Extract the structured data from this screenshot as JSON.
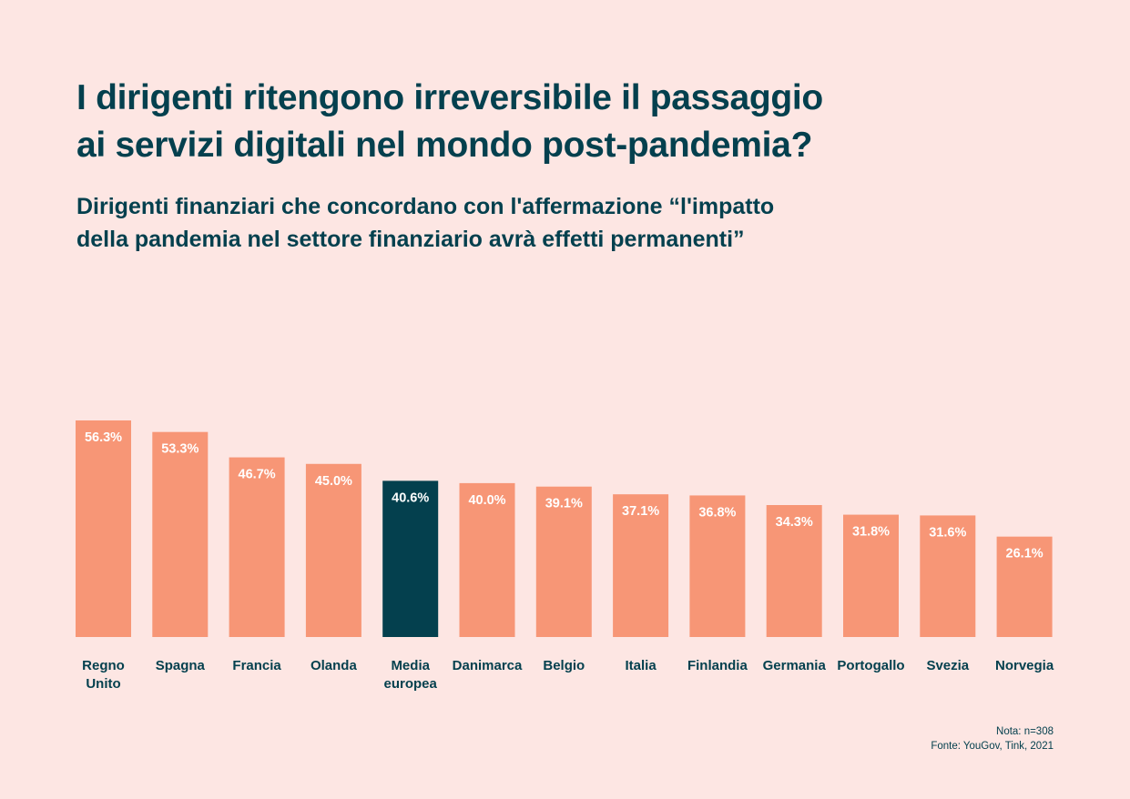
{
  "header": {
    "title_line1": "I dirigenti ritengono irreversibile il passaggio",
    "title_line2": "ai servizi digitali nel mondo post-pandemia?",
    "subtitle_line1": "Dirigenti finanziari che concordano con l'affermazione “l'impatto",
    "subtitle_line2": "della pandemia nel settore finanziario avrà effetti permanenti”"
  },
  "footer": {
    "note": "Nota: n=308",
    "source": "Fonte: YouGov, Tink, 2021"
  },
  "colors": {
    "background": "#fde6e3",
    "bar": "#f79676",
    "highlight_bar": "#04404e",
    "text": "#04404e",
    "bar_label": "#ffffff"
  },
  "chart_data": {
    "type": "bar",
    "categories": [
      "Regno Unito",
      "Spagna",
      "Francia",
      "Olanda",
      "Media europea",
      "Danimarca",
      "Belgio",
      "Italia",
      "Finlandia",
      "Germania",
      "Portogallo",
      "Svezia",
      "Norvegia"
    ],
    "category_label_lines": [
      [
        "Regno",
        "Unito"
      ],
      [
        "Spagna"
      ],
      [
        "Francia"
      ],
      [
        "Olanda"
      ],
      [
        "Media",
        "europea"
      ],
      [
        "Danimarca"
      ],
      [
        "Belgio"
      ],
      [
        "Italia"
      ],
      [
        "Finlandia"
      ],
      [
        "Germania"
      ],
      [
        "Portogallo"
      ],
      [
        "Svezia"
      ],
      [
        "Norvegia"
      ]
    ],
    "values": [
      56.3,
      53.3,
      46.7,
      45.0,
      40.6,
      40.0,
      39.1,
      37.1,
      36.8,
      34.3,
      31.8,
      31.6,
      26.1
    ],
    "value_labels": [
      "56.3%",
      "53.3%",
      "46.7%",
      "45.0%",
      "40.6%",
      "40.0%",
      "39.1%",
      "37.1%",
      "36.8%",
      "34.3%",
      "31.8%",
      "31.6%",
      "26.1%"
    ],
    "highlight_category": "Media europea",
    "xlabel": "",
    "ylabel": "",
    "ylim": [
      0,
      56.3
    ],
    "grid": false,
    "legend": "none"
  }
}
